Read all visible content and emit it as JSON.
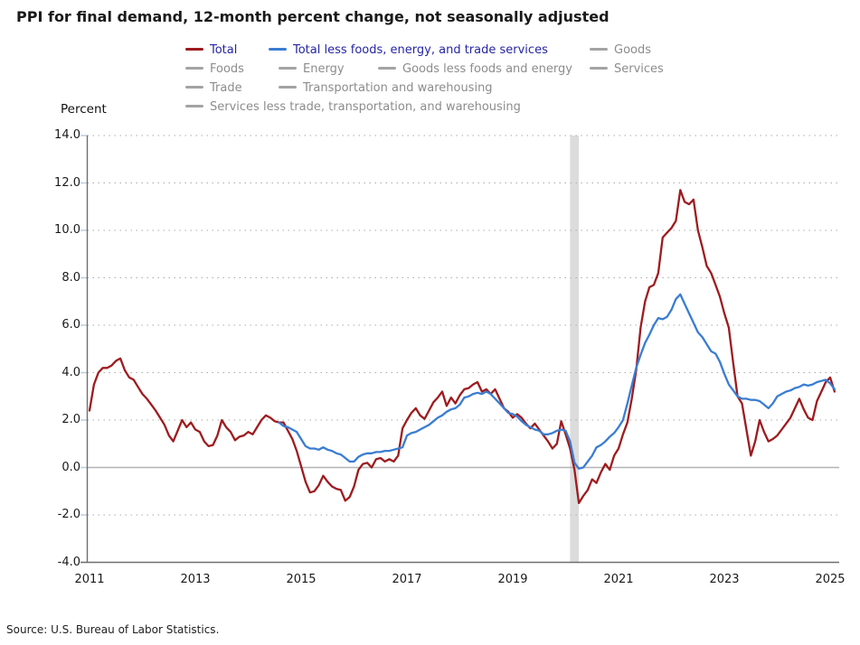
{
  "title": "PPI for final demand, 12-month percent change, not seasonally adjusted",
  "y_axis_label": "Percent",
  "source": "Source: U.S. Bureau of Labor Statistics.",
  "colors": {
    "total_line": "#9e1b1e",
    "core_line": "#3a7dd2",
    "legend_active_text": "#2525a5",
    "legend_inactive_text": "#8c8c8c",
    "legend_inactive_swatch": "#a3a3a3",
    "grid_dotted": "#ababab",
    "zero_line": "#b3b3b3",
    "axis_line": "#6d6e71",
    "tick_mark": "#b9cadb",
    "recession_band": "#dcdcdc"
  },
  "legend": {
    "rows": [
      [
        {
          "label": "Total",
          "active": true,
          "swatch": "#9e1b1e"
        },
        {
          "label": "Total less foods, energy, and trade services",
          "active": true,
          "swatch": "#3a7dd2"
        },
        {
          "label": "Goods",
          "active": false
        }
      ],
      [
        {
          "label": "Foods",
          "active": false
        },
        {
          "label": "Energy",
          "active": false
        },
        {
          "label": "Goods less foods and energy",
          "active": false
        },
        {
          "label": "Services",
          "active": false
        }
      ],
      [
        {
          "label": "Trade",
          "active": false
        },
        {
          "label": "Transportation and warehousing",
          "active": false
        }
      ],
      [
        {
          "label": "Services less trade, transportation, and warehousing",
          "active": false
        }
      ]
    ]
  },
  "chart_data": {
    "type": "line",
    "title": "PPI for final demand, 12-month percent change, not seasonally adjusted",
    "xlabel": "",
    "ylabel": "Percent",
    "ylim": [
      -4.0,
      14.0
    ],
    "grid": "dotted horizontal, solid zero line",
    "legend_position": "top",
    "x_start_month": "2011-01",
    "x_end_month": "2025-02",
    "x_tick_years": [
      2011,
      2013,
      2015,
      2017,
      2019,
      2021,
      2023,
      2025
    ],
    "y_tick_values": [
      14,
      12,
      10,
      8,
      6,
      4,
      2,
      0,
      -2,
      -4
    ],
    "y_tick_labels": [
      "14.0",
      "12.0",
      "10.0",
      "8.0",
      "6.0",
      "4.0",
      "2.0",
      "0.0",
      "-2.0",
      "-4.0"
    ],
    "recession_band": {
      "start": "2020-02",
      "end": "2020-04"
    },
    "series": [
      {
        "name": "Total",
        "color": "#9e1b1e",
        "start": "2011-01",
        "values": [
          2.4,
          3.5,
          4.0,
          4.2,
          4.2,
          4.3,
          4.5,
          4.6,
          4.1,
          3.8,
          3.7,
          3.4,
          3.1,
          2.9,
          2.65,
          2.4,
          2.1,
          1.8,
          1.35,
          1.1,
          1.55,
          2.0,
          1.7,
          1.9,
          1.6,
          1.5,
          1.1,
          0.9,
          0.95,
          1.35,
          2.0,
          1.7,
          1.5,
          1.15,
          1.3,
          1.35,
          1.5,
          1.4,
          1.7,
          2.0,
          2.2,
          2.1,
          1.95,
          1.9,
          1.9,
          1.55,
          1.2,
          0.7,
          0.05,
          -0.6,
          -1.05,
          -1.0,
          -0.75,
          -0.35,
          -0.6,
          -0.8,
          -0.9,
          -0.95,
          -1.4,
          -1.25,
          -0.8,
          -0.1,
          0.15,
          0.2,
          0.0,
          0.35,
          0.4,
          0.25,
          0.35,
          0.25,
          0.5,
          1.65,
          2.0,
          2.3,
          2.5,
          2.2,
          2.05,
          2.4,
          2.75,
          2.95,
          3.2,
          2.6,
          2.95,
          2.7,
          3.05,
          3.3,
          3.35,
          3.5,
          3.6,
          3.2,
          3.3,
          3.1,
          3.3,
          2.9,
          2.5,
          2.35,
          2.1,
          2.25,
          2.1,
          1.85,
          1.65,
          1.85,
          1.6,
          1.35,
          1.1,
          0.8,
          1.0,
          1.95,
          1.4,
          0.8,
          -0.1,
          -1.5,
          -1.2,
          -0.95,
          -0.5,
          -0.65,
          -0.2,
          0.15,
          -0.1,
          0.5,
          0.8,
          1.4,
          1.9,
          2.9,
          4.1,
          5.9,
          7.0,
          7.6,
          7.7,
          8.2,
          9.7,
          9.9,
          10.1,
          10.4,
          11.7,
          11.2,
          11.1,
          11.3,
          10.0,
          9.3,
          8.5,
          8.2,
          7.7,
          7.2,
          6.5,
          5.9,
          4.4,
          3.0,
          2.7,
          1.6,
          0.5,
          1.1,
          2.0,
          1.5,
          1.1,
          1.2,
          1.35,
          1.6,
          1.85,
          2.1,
          2.5,
          2.9,
          2.45,
          2.1,
          2.0,
          2.8,
          3.2,
          3.6,
          3.8,
          3.2
        ]
      },
      {
        "name": "Total less foods, energy, and trade services",
        "color": "#3a7dd2",
        "start": "2014-08",
        "values": [
          1.9,
          1.75,
          1.7,
          1.6,
          1.5,
          1.2,
          0.9,
          0.8,
          0.8,
          0.75,
          0.85,
          0.75,
          0.7,
          0.6,
          0.55,
          0.4,
          0.25,
          0.25,
          0.45,
          0.55,
          0.6,
          0.6,
          0.65,
          0.65,
          0.7,
          0.7,
          0.75,
          0.8,
          0.85,
          1.35,
          1.45,
          1.5,
          1.6,
          1.7,
          1.8,
          1.95,
          2.1,
          2.2,
          2.35,
          2.45,
          2.5,
          2.65,
          2.95,
          3.0,
          3.1,
          3.15,
          3.1,
          3.2,
          3.1,
          2.9,
          2.7,
          2.5,
          2.3,
          2.25,
          2.15,
          1.95,
          1.8,
          1.7,
          1.6,
          1.55,
          1.4,
          1.4,
          1.45,
          1.55,
          1.6,
          1.55,
          1.1,
          0.2,
          -0.05,
          0.0,
          0.25,
          0.5,
          0.85,
          0.95,
          1.1,
          1.3,
          1.45,
          1.7,
          2.0,
          2.7,
          3.45,
          4.2,
          4.75,
          5.25,
          5.6,
          6.0,
          6.3,
          6.25,
          6.35,
          6.65,
          7.1,
          7.3,
          6.9,
          6.5,
          6.1,
          5.7,
          5.5,
          5.2,
          4.9,
          4.8,
          4.45,
          3.95,
          3.5,
          3.25,
          3.0,
          2.9,
          2.9,
          2.85,
          2.85,
          2.8,
          2.65,
          2.5,
          2.7,
          3.0,
          3.1,
          3.2,
          3.25,
          3.35,
          3.4,
          3.5,
          3.45,
          3.5,
          3.6,
          3.65,
          3.7,
          3.55,
          3.3
        ]
      }
    ]
  }
}
